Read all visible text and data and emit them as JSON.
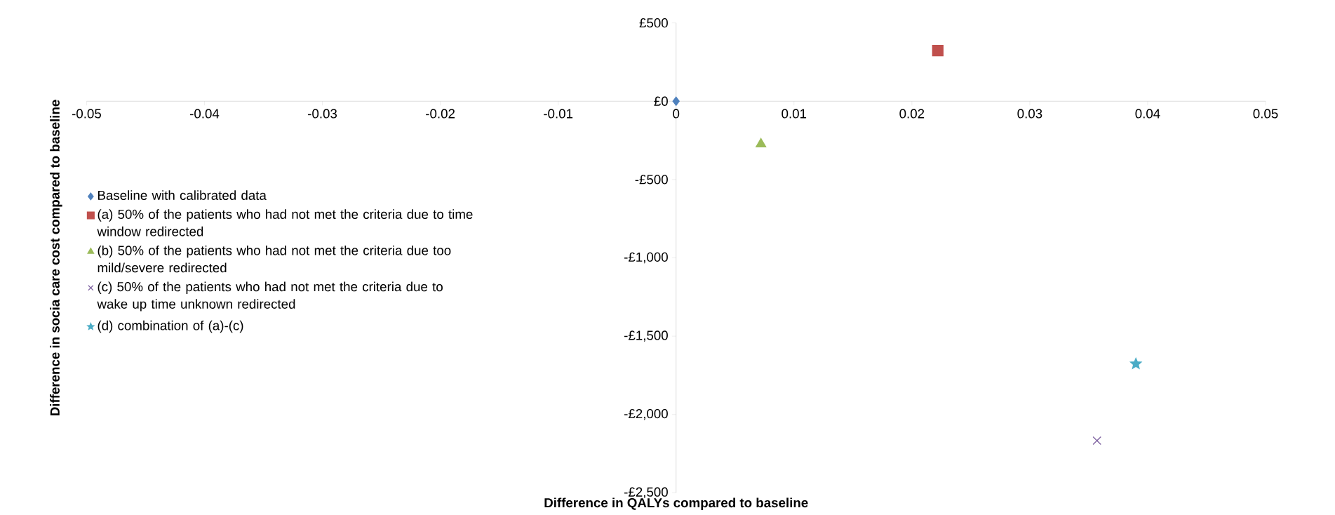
{
  "chart_data": {
    "type": "scatter",
    "xlabel": "Difference in QALYs compared to baseline",
    "ylabel": "Difference in socia care cost compared to baseline",
    "xlim": [
      -0.05,
      0.05
    ],
    "xticks": [
      -0.05,
      -0.04,
      -0.03,
      -0.02,
      -0.01,
      0,
      0.01,
      0.02,
      0.03,
      0.04,
      0.05
    ],
    "ylim": [
      -2500,
      500
    ],
    "yticks": [
      {
        "value": 500,
        "label": "£500"
      },
      {
        "value": 0,
        "label": "£0"
      },
      {
        "value": -500,
        "label": "-£500"
      },
      {
        "value": -1000,
        "label": "-£1,000"
      },
      {
        "value": -1500,
        "label": "-£1,500"
      },
      {
        "value": -2000,
        "label": "-£2,000"
      },
      {
        "value": -2500,
        "label": "-£2,500"
      }
    ],
    "grid": false,
    "legend": "left",
    "series": [
      {
        "name": "Baseline with calibrated data",
        "color": "#4f81bd",
        "marker": "diamond",
        "x": [
          0
        ],
        "values": [
          0
        ]
      },
      {
        "name": "(a) 50% of the patients who had not met the criteria due to time window redirected",
        "color": "#c0504d",
        "marker": "square",
        "x": [
          0.0222
        ],
        "values": [
          323
        ]
      },
      {
        "name": "(b) 50% of the patients who had not met the criteria due too mild/severe redirected",
        "color": "#9bbb59",
        "marker": "triangle",
        "x": [
          0.0072
        ],
        "values": [
          -274
        ]
      },
      {
        "name": "(c) 50% of the patients who had not met the criteria due to wake up time unknown redirected",
        "color": "#8064a2",
        "marker": "cross",
        "x": [
          0.0357
        ],
        "values": [
          -2167
        ]
      },
      {
        "name": "(d) combination of (a)-(c)",
        "color": "#4bacc6",
        "marker": "star",
        "x": [
          0.039
        ],
        "values": [
          -1677
        ]
      }
    ]
  }
}
